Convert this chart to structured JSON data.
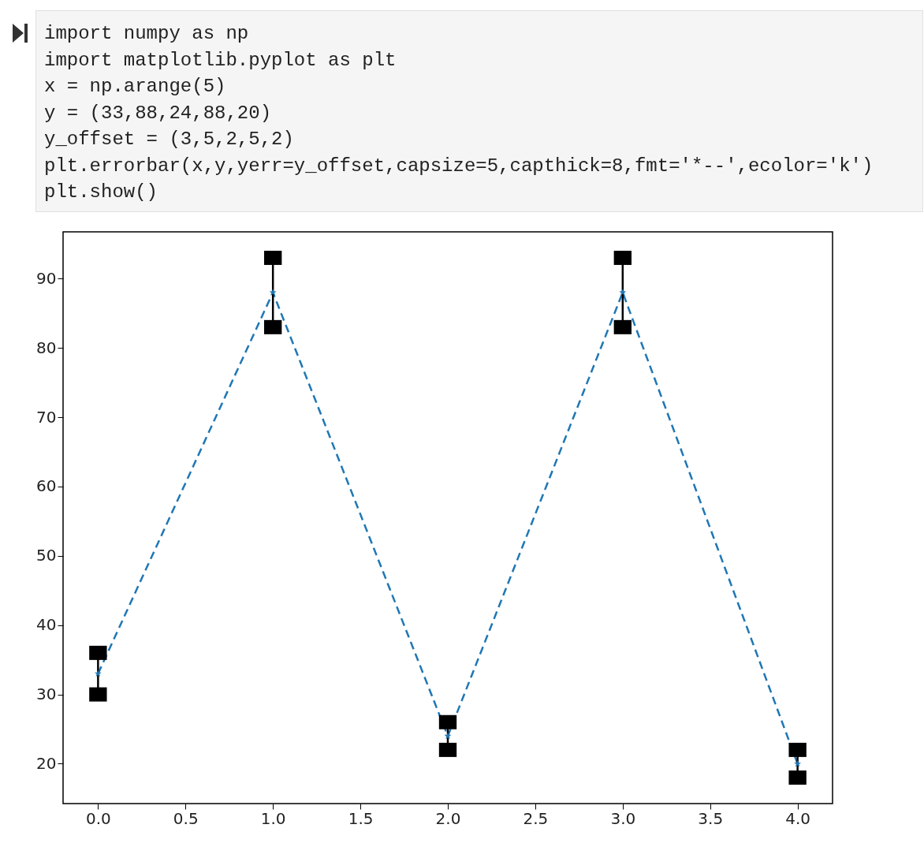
{
  "chart_data": {
    "type": "line",
    "annotations": [
      "import numpy as np",
      "import matplotlib.pyplot as plt",
      "x = np.arange(5)",
      "y = (33,88,24,88,20)",
      "y_offset = (3,5,2,5,2)",
      "plt.errorbar(x,y,yerr=y_offset,capsize=5,capthick=8,fmt='*--',ecolor='k')",
      "plt.show()"
    ],
    "x": [
      0,
      1,
      2,
      3,
      4
    ],
    "series": [
      {
        "color": "#1f77b4",
        "values": [
          33,
          88,
          24,
          88,
          20
        ],
        "errors": [
          3,
          5,
          2,
          5,
          2
        ]
      }
    ],
    "xlim": [
      -0.2,
      4.2
    ],
    "xticks": [
      {
        "value": 0,
        "label": "0.0"
      },
      {
        "value": 0.5,
        "label": "0.5"
      },
      {
        "value": 1,
        "label": "1.0"
      },
      {
        "value": 1.5,
        "label": "1.5"
      },
      {
        "value": 2,
        "label": "2.0"
      },
      {
        "value": 2.5,
        "label": "2.5"
      },
      {
        "value": 3,
        "label": "3.0"
      },
      {
        "value": 3.5,
        "label": "3.5"
      },
      {
        "value": 4,
        "label": "4.0"
      }
    ],
    "ylim": [
      14.25,
      96.75
    ],
    "yticks": [
      20,
      30,
      40,
      50,
      60,
      70,
      80,
      90
    ],
    "marker": "star",
    "line_style": "dashed",
    "grid": false
  }
}
